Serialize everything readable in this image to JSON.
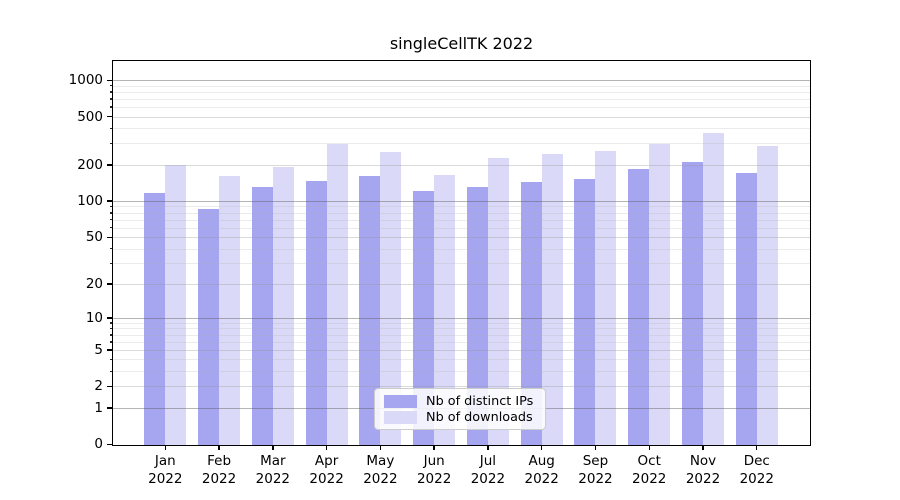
{
  "title": "singleCellTK 2022",
  "chart_data": {
    "type": "bar",
    "title": "singleCellTK 2022",
    "categories": [
      "Jan",
      "Feb",
      "Mar",
      "Apr",
      "May",
      "Jun",
      "Jul",
      "Aug",
      "Sep",
      "Oct",
      "Nov",
      "Dec"
    ],
    "year": "2022",
    "series": [
      {
        "name": "Nb of distinct IPs",
        "color": "#a6a6f0",
        "values": [
          116,
          86,
          131,
          146,
          161,
          121,
          131,
          145,
          152,
          183,
          212,
          170
        ]
      },
      {
        "name": "Nb of downloads",
        "color": "#dadaf8",
        "values": [
          200,
          161,
          191,
          298,
          253,
          165,
          226,
          246,
          260,
          297,
          366,
          287
        ]
      }
    ],
    "xlabel": "",
    "ylabel": "",
    "y_scale": "log10(value+1)",
    "y_major_ticks": [
      1000,
      500,
      200,
      100,
      50,
      20,
      10,
      5,
      2,
      1,
      0
    ],
    "y_minor_gridlines": [
      900,
      800,
      700,
      600,
      400,
      300,
      90,
      80,
      70,
      60,
      40,
      30,
      9,
      8,
      7,
      6,
      4,
      3
    ],
    "y_decade_ticks": [
      1000,
      100,
      10,
      1
    ],
    "ylim": [
      0,
      1300
    ],
    "grid": true,
    "legend_position": "lower center"
  }
}
